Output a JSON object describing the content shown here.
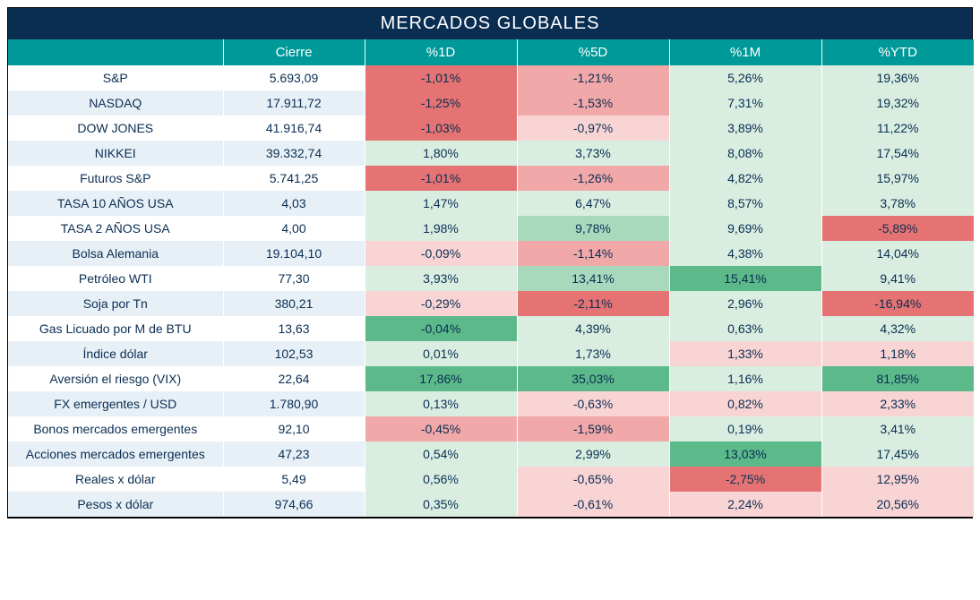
{
  "title": "MERCADOS GLOBALES",
  "colors": {
    "title_bg": "#0a2e52",
    "header_bg": "#009999",
    "row_odd_bg": "#ffffff",
    "row_even_bg": "#e8f0f7",
    "text": "#0a2e52",
    "heat": {
      "strong_neg": "#e57373",
      "mid_neg": "#f1a8a8",
      "light_neg": "#f9d4d4",
      "light_pos": "#d9ede0",
      "mid_pos": "#a9d9bd",
      "strong_pos": "#5cb98a"
    }
  },
  "columns": [
    {
      "key": "name",
      "label": ""
    },
    {
      "key": "cierre",
      "label": "Cierre"
    },
    {
      "key": "d1",
      "label": "%1D"
    },
    {
      "key": "d5",
      "label": "%5D"
    },
    {
      "key": "m1",
      "label": "%1M"
    },
    {
      "key": "ytd",
      "label": "%YTD"
    }
  ],
  "rows": [
    {
      "name": "S&P",
      "cierre": "5.693,09",
      "d1": {
        "v": "-1,01%",
        "heat": "strong_neg"
      },
      "d5": {
        "v": "-1,21%",
        "heat": "mid_neg"
      },
      "m1": {
        "v": "5,26%",
        "heat": "light_pos"
      },
      "ytd": {
        "v": "19,36%",
        "heat": "light_pos"
      }
    },
    {
      "name": "NASDAQ",
      "cierre": "17.911,72",
      "d1": {
        "v": "-1,25%",
        "heat": "strong_neg"
      },
      "d5": {
        "v": "-1,53%",
        "heat": "mid_neg"
      },
      "m1": {
        "v": "7,31%",
        "heat": "light_pos"
      },
      "ytd": {
        "v": "19,32%",
        "heat": "light_pos"
      }
    },
    {
      "name": "DOW JONES",
      "cierre": "41.916,74",
      "d1": {
        "v": "-1,03%",
        "heat": "strong_neg"
      },
      "d5": {
        "v": "-0,97%",
        "heat": "light_neg"
      },
      "m1": {
        "v": "3,89%",
        "heat": "light_pos"
      },
      "ytd": {
        "v": "11,22%",
        "heat": "light_pos"
      }
    },
    {
      "name": "NIKKEI",
      "cierre": "39.332,74",
      "d1": {
        "v": "1,80%",
        "heat": "light_pos"
      },
      "d5": {
        "v": "3,73%",
        "heat": "light_pos"
      },
      "m1": {
        "v": "8,08%",
        "heat": "light_pos"
      },
      "ytd": {
        "v": "17,54%",
        "heat": "light_pos"
      }
    },
    {
      "name": "Futuros S&P",
      "cierre": "5.741,25",
      "d1": {
        "v": "-1,01%",
        "heat": "strong_neg"
      },
      "d5": {
        "v": "-1,26%",
        "heat": "mid_neg"
      },
      "m1": {
        "v": "4,82%",
        "heat": "light_pos"
      },
      "ytd": {
        "v": "15,97%",
        "heat": "light_pos"
      }
    },
    {
      "name": "TASA 10 AÑOS USA",
      "cierre": "4,03",
      "d1": {
        "v": "1,47%",
        "heat": "light_pos"
      },
      "d5": {
        "v": "6,47%",
        "heat": "light_pos"
      },
      "m1": {
        "v": "8,57%",
        "heat": "light_pos"
      },
      "ytd": {
        "v": "3,78%",
        "heat": "light_pos"
      }
    },
    {
      "name": "TASA 2 AÑOS USA",
      "cierre": "4,00",
      "d1": {
        "v": "1,98%",
        "heat": "light_pos"
      },
      "d5": {
        "v": "9,78%",
        "heat": "mid_pos"
      },
      "m1": {
        "v": "9,69%",
        "heat": "light_pos"
      },
      "ytd": {
        "v": "-5,89%",
        "heat": "strong_neg"
      }
    },
    {
      "name": "Bolsa Alemania",
      "cierre": "19.104,10",
      "d1": {
        "v": "-0,09%",
        "heat": "light_neg"
      },
      "d5": {
        "v": "-1,14%",
        "heat": "mid_neg"
      },
      "m1": {
        "v": "4,38%",
        "heat": "light_pos"
      },
      "ytd": {
        "v": "14,04%",
        "heat": "light_pos"
      }
    },
    {
      "name": "Petróleo WTI",
      "cierre": "77,30",
      "d1": {
        "v": "3,93%",
        "heat": "light_pos"
      },
      "d5": {
        "v": "13,41%",
        "heat": "mid_pos"
      },
      "m1": {
        "v": "15,41%",
        "heat": "strong_pos"
      },
      "ytd": {
        "v": "9,41%",
        "heat": "light_pos"
      }
    },
    {
      "name": "Soja por Tn",
      "cierre": "380,21",
      "d1": {
        "v": "-0,29%",
        "heat": "light_neg"
      },
      "d5": {
        "v": "-2,11%",
        "heat": "strong_neg"
      },
      "m1": {
        "v": "2,96%",
        "heat": "light_pos"
      },
      "ytd": {
        "v": "-16,94%",
        "heat": "strong_neg"
      }
    },
    {
      "name": "Gas Licuado por M de BTU",
      "cierre": "13,63",
      "d1": {
        "v": "-0,04%",
        "heat": "strong_pos"
      },
      "d5": {
        "v": "4,39%",
        "heat": "light_pos"
      },
      "m1": {
        "v": "0,63%",
        "heat": "light_pos"
      },
      "ytd": {
        "v": "4,32%",
        "heat": "light_pos"
      }
    },
    {
      "name": "Índice dólar",
      "cierre": "102,53",
      "d1": {
        "v": "0,01%",
        "heat": "light_pos"
      },
      "d5": {
        "v": "1,73%",
        "heat": "light_pos"
      },
      "m1": {
        "v": "1,33%",
        "heat": "light_neg"
      },
      "ytd": {
        "v": "1,18%",
        "heat": "light_neg"
      }
    },
    {
      "name": "Aversión el riesgo (VIX)",
      "cierre": "22,64",
      "d1": {
        "v": "17,86%",
        "heat": "strong_pos"
      },
      "d5": {
        "v": "35,03%",
        "heat": "strong_pos"
      },
      "m1": {
        "v": "1,16%",
        "heat": "light_pos"
      },
      "ytd": {
        "v": "81,85%",
        "heat": "strong_pos"
      }
    },
    {
      "name": "FX emergentes / USD",
      "cierre": "1.780,90",
      "d1": {
        "v": "0,13%",
        "heat": "light_pos"
      },
      "d5": {
        "v": "-0,63%",
        "heat": "light_neg"
      },
      "m1": {
        "v": "0,82%",
        "heat": "light_neg"
      },
      "ytd": {
        "v": "2,33%",
        "heat": "light_neg"
      }
    },
    {
      "name": "Bonos mercados emergentes",
      "cierre": "92,10",
      "d1": {
        "v": "-0,45%",
        "heat": "mid_neg"
      },
      "d5": {
        "v": "-1,59%",
        "heat": "mid_neg"
      },
      "m1": {
        "v": "0,19%",
        "heat": "light_pos"
      },
      "ytd": {
        "v": "3,41%",
        "heat": "light_pos"
      }
    },
    {
      "name": "Acciones mercados emergentes",
      "cierre": "47,23",
      "d1": {
        "v": "0,54%",
        "heat": "light_pos"
      },
      "d5": {
        "v": "2,99%",
        "heat": "light_pos"
      },
      "m1": {
        "v": "13,03%",
        "heat": "strong_pos"
      },
      "ytd": {
        "v": "17,45%",
        "heat": "light_pos"
      }
    },
    {
      "name": "Reales x dólar",
      "cierre": "5,49",
      "d1": {
        "v": "0,56%",
        "heat": "light_pos"
      },
      "d5": {
        "v": "-0,65%",
        "heat": "light_neg"
      },
      "m1": {
        "v": "-2,75%",
        "heat": "strong_neg"
      },
      "ytd": {
        "v": "12,95%",
        "heat": "light_neg"
      }
    },
    {
      "name": "Pesos x dólar",
      "cierre": "974,66",
      "d1": {
        "v": "0,35%",
        "heat": "light_pos"
      },
      "d5": {
        "v": "-0,61%",
        "heat": "light_neg"
      },
      "m1": {
        "v": "2,24%",
        "heat": "light_neg"
      },
      "ytd": {
        "v": "20,56%",
        "heat": "light_neg"
      }
    }
  ]
}
